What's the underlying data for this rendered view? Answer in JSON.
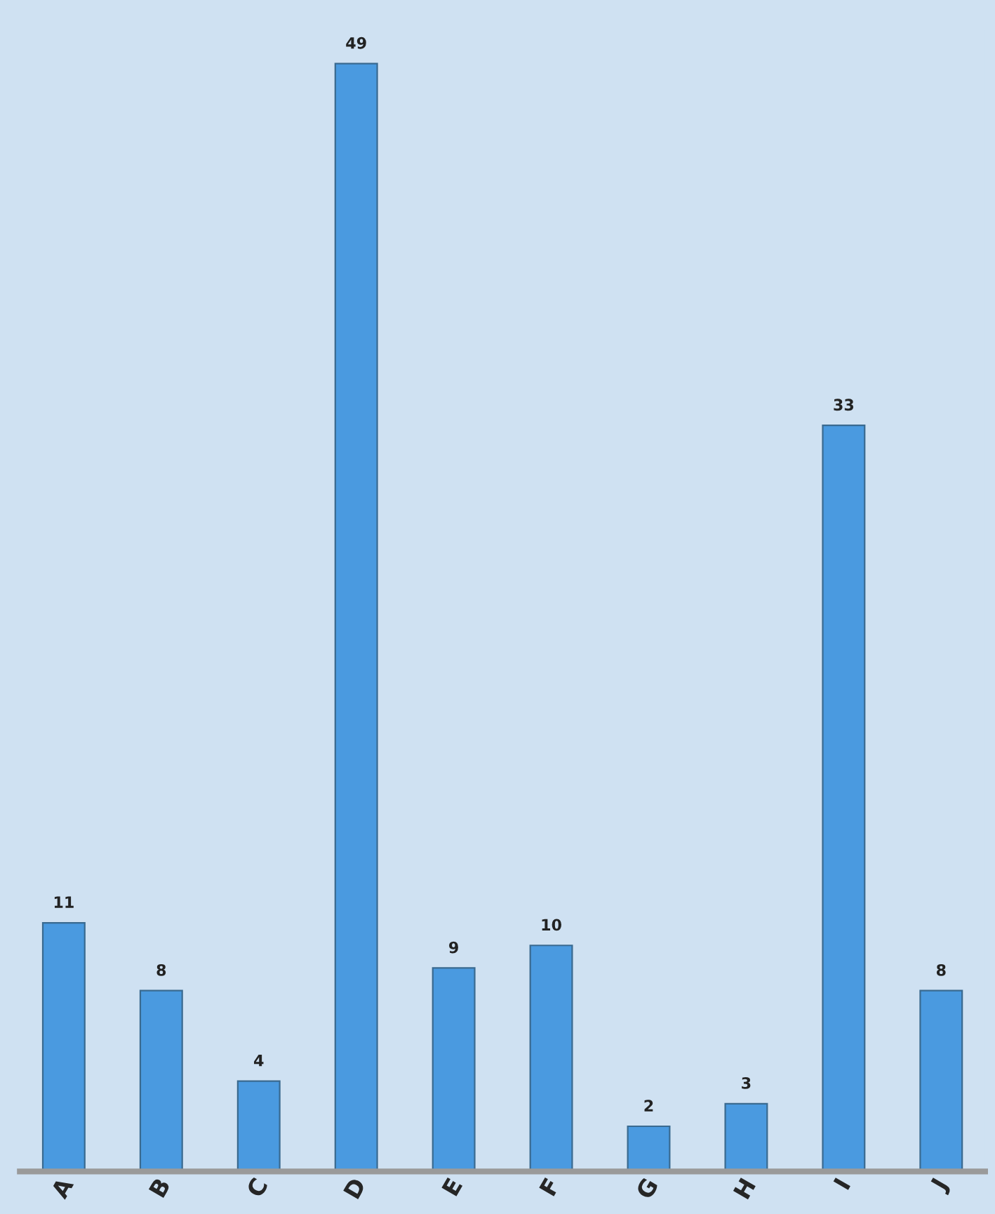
{
  "chart_data": {
    "type": "bar",
    "categories": [
      "A",
      "B",
      "C",
      "D",
      "E",
      "F",
      "G",
      "H",
      "I",
      "J"
    ],
    "values": [
      11,
      8,
      4,
      49,
      9,
      10,
      2,
      3,
      33,
      8
    ],
    "color": "#4a9ae0",
    "data_labels": true,
    "grid": false,
    "legend": false
  }
}
